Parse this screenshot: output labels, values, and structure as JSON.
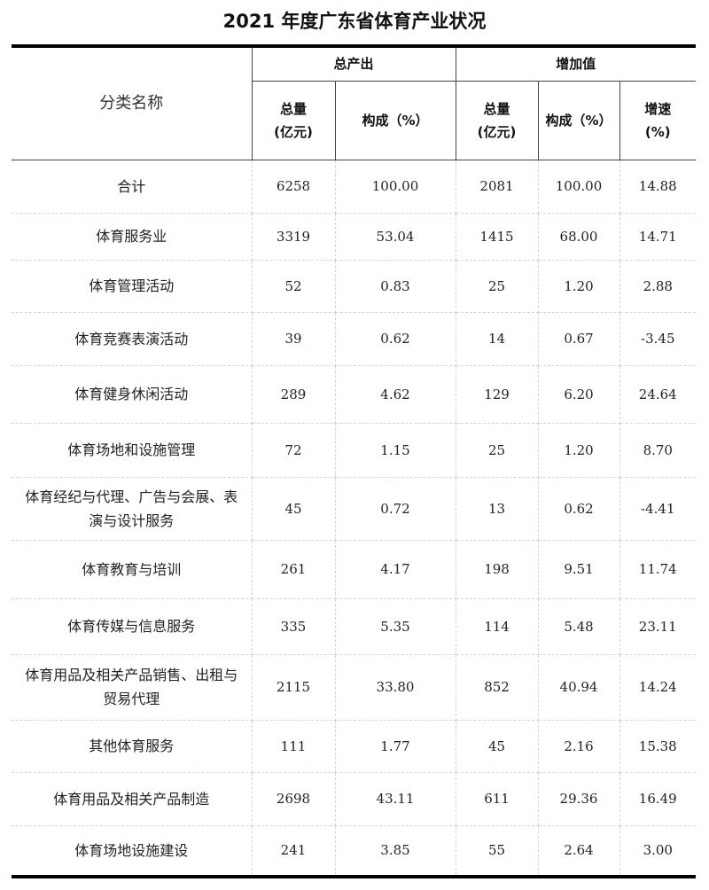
{
  "title": "2021 年度广东省体育产业状况",
  "header": {
    "category": "分类名称",
    "group_output": "总产出",
    "group_value_added": "增加值",
    "output_total": "总量\n(亿元)",
    "output_share": "构成（%）",
    "va_total": "总量\n(亿元)",
    "va_share": "构成（%）",
    "va_growth": "增速\n(%)"
  },
  "rows": [
    {
      "name": "合计",
      "out_total": "6258",
      "out_share": "100.00",
      "va_total": "2081",
      "va_share": "100.00",
      "growth": "14.88"
    },
    {
      "name": "体育服务业",
      "out_total": "3319",
      "out_share": "53.04",
      "va_total": "1415",
      "va_share": "68.00",
      "growth": "14.71"
    },
    {
      "name": "体育管理活动",
      "out_total": "52",
      "out_share": "0.83",
      "va_total": "25",
      "va_share": "1.20",
      "growth": "2.88"
    },
    {
      "name": "体育竞赛表演活动",
      "out_total": "39",
      "out_share": "0.62",
      "va_total": "14",
      "va_share": "0.67",
      "growth": "-3.45"
    },
    {
      "name": "体育健身休闲活动",
      "out_total": "289",
      "out_share": "4.62",
      "va_total": "129",
      "va_share": "6.20",
      "growth": "24.64"
    },
    {
      "name": "体育场地和设施管理",
      "out_total": "72",
      "out_share": "1.15",
      "va_total": "25",
      "va_share": "1.20",
      "growth": "8.70"
    },
    {
      "name": "体育经纪与代理、广告与会展、表演与设计服务",
      "out_total": "45",
      "out_share": "0.72",
      "va_total": "13",
      "va_share": "0.62",
      "growth": "-4.41"
    },
    {
      "name": "体育教育与培训",
      "out_total": "261",
      "out_share": "4.17",
      "va_total": "198",
      "va_share": "9.51",
      "growth": "11.74"
    },
    {
      "name": "体育传媒与信息服务",
      "out_total": "335",
      "out_share": "5.35",
      "va_total": "114",
      "va_share": "5.48",
      "growth": "23.11"
    },
    {
      "name": "体育用品及相关产品销售、出租与贸易代理",
      "out_total": "2115",
      "out_share": "33.80",
      "va_total": "852",
      "va_share": "40.94",
      "growth": "14.24"
    },
    {
      "name": "其他体育服务",
      "out_total": "111",
      "out_share": "1.77",
      "va_total": "45",
      "va_share": "2.16",
      "growth": "15.38"
    },
    {
      "name": "体育用品及相关产品制造",
      "out_total": "2698",
      "out_share": "43.11",
      "va_total": "611",
      "va_share": "29.36",
      "growth": "16.49"
    },
    {
      "name": "体育场地设施建设",
      "out_total": "241",
      "out_share": "3.85",
      "va_total": "55",
      "va_share": "2.64",
      "growth": "3.00"
    }
  ]
}
